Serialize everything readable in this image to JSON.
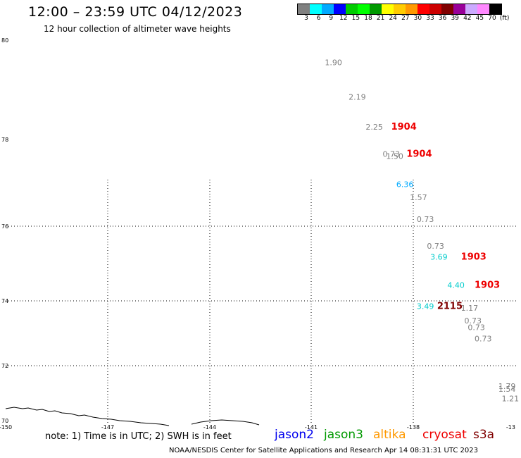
{
  "header": {
    "title": "12:00 – 23:59 UTC 04/12/2023",
    "subtitle": "12 hour collection of altimeter wave heights"
  },
  "scale": {
    "colors": [
      "#808080",
      "#00ffff",
      "#00aaff",
      "#0000ff",
      "#00cc00",
      "#00ff00",
      "#009900",
      "#ffff00",
      "#ffcc00",
      "#ff9900",
      "#ff0000",
      "#cc0000",
      "#800000",
      "#990099",
      "#ccaaff",
      "#ff88ff",
      "#000000"
    ],
    "labels": [
      "3",
      "6",
      "9",
      "12",
      "15",
      "18",
      "21",
      "24",
      "27",
      "30",
      "33",
      "36",
      "39",
      "42",
      "45",
      "70",
      "(ft)"
    ]
  },
  "axes": {
    "lat_labels": [
      "80",
      "78",
      "76",
      "74",
      "72",
      "70"
    ],
    "lon_labels": [
      "-150",
      "-147",
      "-144",
      "-141",
      "-138",
      "-13"
    ]
  },
  "observations": [
    {
      "text": "1.90",
      "color": "#808080",
      "lon": -140.6,
      "lat": 79.5
    },
    {
      "text": "2.19",
      "color": "#808080",
      "lon": -139.9,
      "lat": 78.8
    },
    {
      "text": "2.25",
      "color": "#808080",
      "lon": -139.4,
      "lat": 78.2
    },
    {
      "text": "0.73",
      "color": "#808080",
      "lon": -138.9,
      "lat": 77.6
    },
    {
      "text": "1.50",
      "color": "#808080",
      "lon": -138.8,
      "lat": 77.55
    },
    {
      "text": "6.36",
      "color": "#00aaff",
      "lon": -138.5,
      "lat": 76.9
    },
    {
      "text": "1.57",
      "color": "#808080",
      "lon": -138.1,
      "lat": 76.6
    },
    {
      "text": "0.73",
      "color": "#808080",
      "lon": -137.9,
      "lat": 76.1
    },
    {
      "text": "0.73",
      "color": "#808080",
      "lon": -137.6,
      "lat": 75.4
    },
    {
      "text": "3.69",
      "color": "#00cccc",
      "lon": -137.5,
      "lat": 75.1
    },
    {
      "text": "4.40",
      "color": "#00cccc",
      "lon": -137.0,
      "lat": 74.35
    },
    {
      "text": "3.49",
      "color": "#00cccc",
      "lon": -137.9,
      "lat": 73.75
    },
    {
      "text": "1.17",
      "color": "#808080",
      "lon": -136.6,
      "lat": 73.7
    },
    {
      "text": "0.73",
      "color": "#808080",
      "lon": -136.5,
      "lat": 73.3
    },
    {
      "text": "0.73",
      "color": "#808080",
      "lon": -136.4,
      "lat": 73.1
    },
    {
      "text": "0.73",
      "color": "#808080",
      "lon": -136.2,
      "lat": 72.75
    },
    {
      "text": "1.79",
      "color": "#808080",
      "lon": -135.5,
      "lat": 71.15
    },
    {
      "text": "1.54",
      "color": "#808080",
      "lon": -135.5,
      "lat": 71.05
    },
    {
      "text": "1.21",
      "color": "#808080",
      "lon": -135.4,
      "lat": 70.7
    }
  ],
  "pass_times": [
    {
      "text": "1904",
      "color": "#ee0000",
      "lon": -138.65,
      "lat": 78.2
    },
    {
      "text": "1904",
      "color": "#ee0000",
      "lon": -138.2,
      "lat": 77.6
    },
    {
      "text": "1903",
      "color": "#ee0000",
      "lon": -136.6,
      "lat": 75.1
    },
    {
      "text": "1903",
      "color": "#ee0000",
      "lon": -136.2,
      "lat": 74.35
    },
    {
      "text": "2115",
      "color": "#800000",
      "lon": -137.3,
      "lat": 73.75
    }
  ],
  "note": "note: 1) Time is in UTC; 2) SWH is in feet",
  "satellites": [
    {
      "name": "jason2",
      "color": "#0000ee"
    },
    {
      "name": "jason3",
      "color": "#009900"
    },
    {
      "name": "altika",
      "color": "#ff9900"
    },
    {
      "name": "cryosat",
      "color": "#ee0000"
    },
    {
      "name": "s3a",
      "color": "#800000"
    }
  ],
  "footer": "NOAA/NESDIS Center for Satellite Applications and Research    Apr 14 08:31:31 UTC 2023"
}
